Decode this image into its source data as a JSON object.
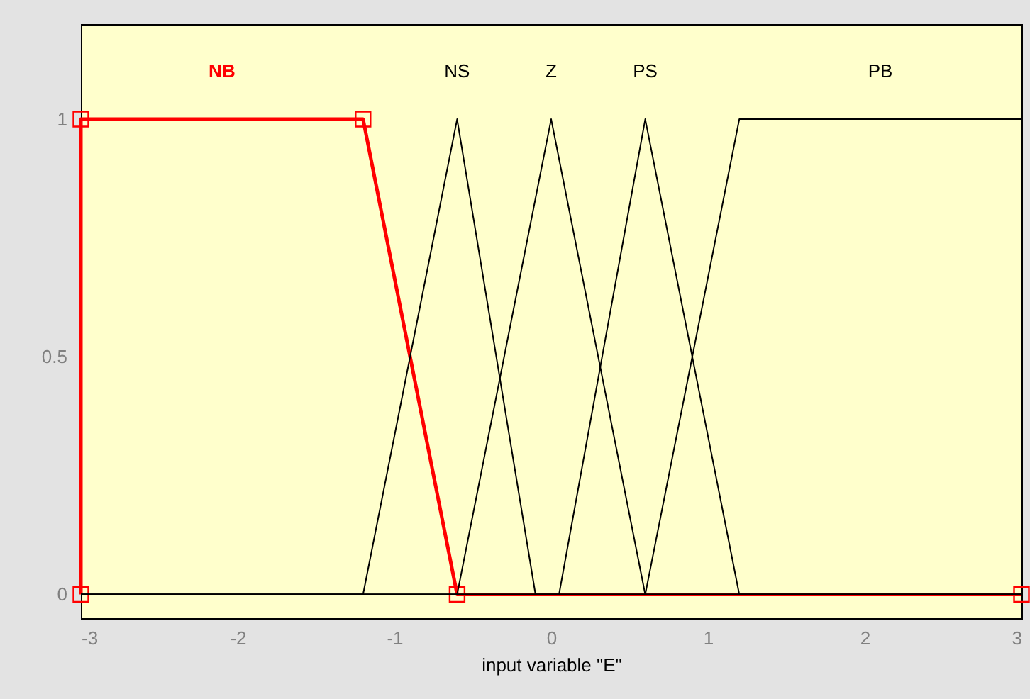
{
  "chart_data": {
    "type": "line",
    "xlabel": "input variable \"E\"",
    "xlim": [
      -3,
      3
    ],
    "xticks": [
      -3,
      -2,
      -1,
      0,
      1,
      2,
      3
    ],
    "ylim": [
      -0.05,
      1.2
    ],
    "yticks": [
      0,
      0.5,
      1
    ],
    "marker": "none",
    "series": [
      {
        "name": "NB",
        "color": "#ff0000",
        "marker": "square",
        "x": [
          -3,
          -3,
          -1.2,
          -0.6,
          3
        ],
        "values": [
          0,
          1,
          1,
          0,
          0
        ]
      },
      {
        "name": "NS",
        "color": "#000000",
        "x": [
          -3,
          -1.2,
          -0.6,
          -0.1,
          3
        ],
        "values": [
          0,
          0,
          1,
          0,
          0
        ]
      },
      {
        "name": "Z",
        "color": "#000000",
        "x": [
          -3,
          -0.6,
          0,
          0.6,
          3
        ],
        "values": [
          0,
          0,
          1,
          0,
          0
        ]
      },
      {
        "name": "PS",
        "color": "#000000",
        "x": [
          -3,
          0.05,
          0.6,
          1.2,
          3
        ],
        "values": [
          0,
          0,
          1,
          0,
          0
        ]
      },
      {
        "name": "PB",
        "color": "#000000",
        "x": [
          -3,
          0.6,
          1.2,
          3
        ],
        "values": [
          0,
          0,
          1,
          1
        ]
      }
    ]
  }
}
